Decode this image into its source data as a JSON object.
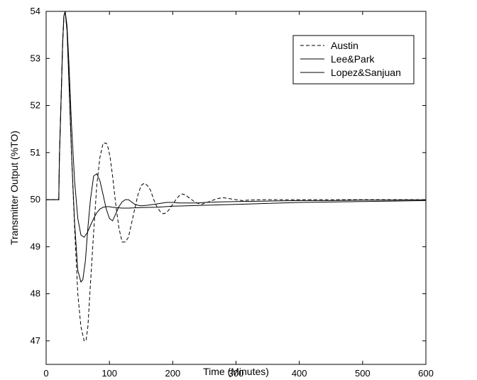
{
  "chart_data": {
    "type": "line",
    "title": "",
    "xlabel": "Time (Minutes)",
    "ylabel": "Transmitter Output (%TO)",
    "xlim": [
      0,
      600
    ],
    "ylim": [
      46.5,
      54
    ],
    "xticks": [
      0,
      100,
      200,
      300,
      400,
      500,
      600
    ],
    "yticks": [
      47,
      48,
      49,
      50,
      51,
      52,
      53,
      54
    ],
    "grid": false,
    "legend_position": "top-right",
    "series": [
      {
        "name": "Austin",
        "style": "dashed",
        "color": "#000000",
        "x": [
          0,
          20,
          21,
          24,
          26,
          28,
          30,
          33,
          36,
          40,
          45,
          50,
          55,
          60,
          63,
          66,
          70,
          75,
          80,
          85,
          90,
          95,
          98,
          101,
          105,
          110,
          115,
          120,
          125,
          130,
          135,
          140,
          145,
          150,
          155,
          160,
          165,
          170,
          175,
          180,
          185,
          190,
          195,
          200,
          205,
          210,
          215,
          220,
          225,
          230,
          235,
          240,
          245,
          250,
          260,
          270,
          280,
          290,
          300,
          310,
          320,
          340,
          360,
          380,
          400,
          450,
          500,
          550,
          600
        ],
        "y": [
          50,
          50,
          50.9,
          52.3,
          53.3,
          53.9,
          54.0,
          53.6,
          52.6,
          51.0,
          49.4,
          48.0,
          47.3,
          47.0,
          47.0,
          47.3,
          48.2,
          49.3,
          50.3,
          50.9,
          51.2,
          51.2,
          51.1,
          50.9,
          50.5,
          49.9,
          49.4,
          49.1,
          49.1,
          49.2,
          49.5,
          49.8,
          50.1,
          50.3,
          50.35,
          50.3,
          50.2,
          50.0,
          49.85,
          49.75,
          49.7,
          49.72,
          49.8,
          49.9,
          50.0,
          50.08,
          50.12,
          50.1,
          50.05,
          50.0,
          49.95,
          49.92,
          49.9,
          49.92,
          49.97,
          50.02,
          50.04,
          50.02,
          50.0,
          49.98,
          49.99,
          50.0,
          50.0,
          50.0,
          50.0,
          50.0,
          50.0,
          50.0,
          50.0
        ]
      },
      {
        "name": "Lee&Park",
        "style": "solid",
        "color": "#000000",
        "x": [
          0,
          20,
          21,
          24,
          26,
          28,
          30,
          33,
          36,
          40,
          45,
          50,
          55,
          58,
          62,
          66,
          70,
          75,
          80,
          85,
          90,
          95,
          100,
          105,
          110,
          115,
          120,
          125,
          130,
          135,
          140,
          145,
          150,
          160,
          170,
          180,
          190,
          200,
          210,
          220,
          230,
          240,
          250,
          270,
          300,
          350,
          400,
          450,
          500,
          550,
          600
        ],
        "y": [
          50,
          50,
          50.9,
          52.3,
          53.3,
          53.9,
          54.0,
          53.6,
          52.5,
          51.0,
          49.5,
          48.5,
          48.25,
          48.3,
          48.7,
          49.4,
          50.0,
          50.5,
          50.55,
          50.4,
          50.1,
          49.8,
          49.6,
          49.55,
          49.7,
          49.85,
          49.95,
          50.0,
          50.0,
          49.95,
          49.9,
          49.88,
          49.87,
          49.88,
          49.9,
          49.92,
          49.94,
          49.94,
          49.93,
          49.93,
          49.93,
          49.93,
          49.94,
          49.95,
          49.96,
          49.97,
          49.98,
          49.98,
          49.99,
          49.99,
          50.0
        ]
      },
      {
        "name": "Lopez&Sanjuan",
        "style": "solid",
        "color": "#000000",
        "x": [
          0,
          20,
          21,
          24,
          26,
          28,
          30,
          33,
          36,
          40,
          45,
          50,
          55,
          60,
          65,
          70,
          75,
          80,
          85,
          90,
          95,
          100,
          105,
          110,
          120,
          130,
          150,
          175,
          200,
          250,
          300,
          350,
          400,
          450,
          500,
          550,
          600
        ],
        "y": [
          50,
          50,
          50.9,
          52.3,
          53.3,
          53.9,
          54.0,
          53.7,
          52.9,
          51.6,
          50.4,
          49.6,
          49.25,
          49.2,
          49.3,
          49.45,
          49.6,
          49.72,
          49.8,
          49.84,
          49.85,
          49.85,
          49.84,
          49.83,
          49.82,
          49.82,
          49.83,
          49.84,
          49.86,
          49.88,
          49.9,
          49.92,
          49.94,
          49.95,
          49.96,
          49.97,
          49.98
        ]
      }
    ]
  }
}
